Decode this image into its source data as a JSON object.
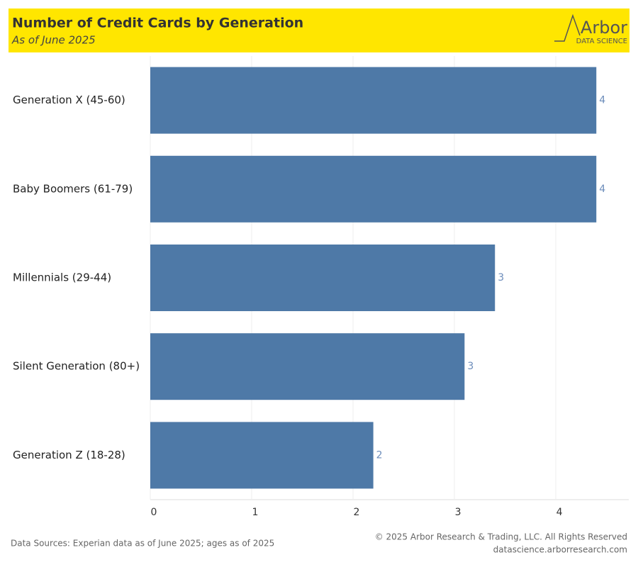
{
  "chart_data": {
    "type": "hbar",
    "title": "Number of Credit Cards by Generation",
    "subtitle": "As of June 2025",
    "categories": [
      "Generation X (45-60)",
      "Baby Boomers (61-79)",
      "Millennials (29-44)",
      "Silent Generation (80+)",
      "Generation Z (18-28)"
    ],
    "values": [
      4.4,
      4.4,
      3.4,
      3.1,
      2.2
    ],
    "value_labels": [
      "4",
      "4",
      "3",
      "3",
      "2"
    ],
    "color": "#4e79a7",
    "xlim": [
      0,
      4.72
    ],
    "xticks": [
      0,
      1,
      2,
      3,
      4
    ],
    "grid": true
  },
  "logo": {
    "name": "Arbor",
    "subtitle": "DATA SCIENCE"
  },
  "footer": {
    "source": "Data Sources: Experian data as of June 2025; ages as of 2025",
    "copyright": "© 2025 Arbor Research & Trading, LLC. All Rights Reserved",
    "website": "datascience.arborresearch.com"
  }
}
